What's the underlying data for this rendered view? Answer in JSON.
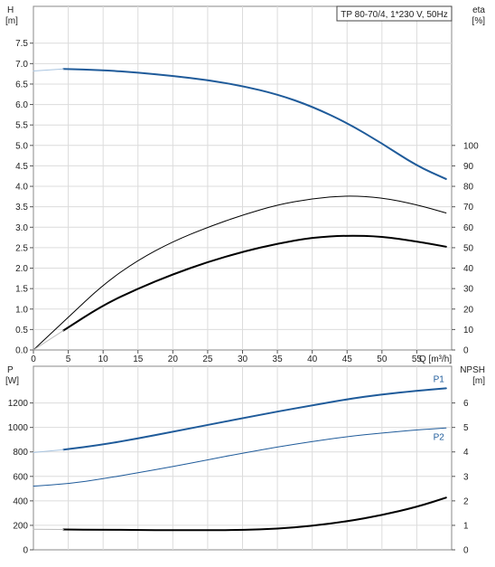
{
  "chart_data": [
    {
      "type": "line",
      "title": "TP 80-70/4, 1*230 V, 50Hz",
      "xlabel": "Q [m³/h]",
      "ylabel": "H",
      "ylabel_unit": "[m]",
      "y2label": "eta",
      "y2label_unit": "[%]",
      "xlim": [
        0,
        60
      ],
      "ylim": [
        0,
        8.4
      ],
      "y2lim": [
        0,
        168
      ],
      "x_ticks": [
        "0",
        "5",
        "10",
        "15",
        "20",
        "25",
        "30",
        "35",
        "40",
        "45",
        "50",
        "55"
      ],
      "x_tick_values": [
        0,
        5,
        10,
        15,
        20,
        25,
        30,
        35,
        40,
        45,
        50,
        55
      ],
      "x_end_label": "Q [m³/h]",
      "y_ticks": [
        "0.0",
        "0.5",
        "1.0",
        "1.5",
        "2.0",
        "2.5",
        "3.0",
        "3.5",
        "4.0",
        "4.5",
        "5.0",
        "5.5",
        "6.0",
        "6.5",
        "7.0",
        "7.5"
      ],
      "y_tick_values": [
        0,
        0.5,
        1,
        1.5,
        2,
        2.5,
        3,
        3.5,
        4,
        4.5,
        5,
        5.5,
        6,
        6.5,
        7,
        7.5
      ],
      "y2_ticks": [
        "0",
        "10",
        "20",
        "30",
        "40",
        "50",
        "60",
        "70",
        "80",
        "90",
        "100"
      ],
      "y2_tick_values": [
        0,
        10,
        20,
        30,
        40,
        50,
        60,
        70,
        80,
        90,
        100
      ],
      "grid": true,
      "series": [
        {
          "axis": "left",
          "color": "#1f5b9a",
          "width": 2,
          "style": "solid",
          "x": [
            4.3,
            10,
            15,
            20,
            25,
            30,
            35,
            40,
            45,
            50,
            55,
            59.2
          ],
          "y": [
            6.87,
            6.84,
            6.78,
            6.7,
            6.6,
            6.45,
            6.25,
            5.95,
            5.55,
            5.05,
            4.5,
            4.18
          ]
        },
        {
          "axis": "left",
          "color": "#a8c4e0",
          "width": 1,
          "style": "solid",
          "x": [
            0,
            4.3
          ],
          "y": [
            6.82,
            6.87
          ]
        },
        {
          "axis": "right",
          "color": "#000000",
          "width": 1,
          "style": "solid",
          "x": [
            0,
            5,
            10,
            15,
            20,
            25,
            30,
            35,
            40,
            45,
            50,
            55,
            59.2
          ],
          "y": [
            0,
            16,
            32,
            44,
            53,
            60,
            66,
            71,
            74,
            75.5,
            74.5,
            71,
            67
          ]
        },
        {
          "axis": "right",
          "color": "#000000",
          "width": 2,
          "style": "solid",
          "x": [
            4.3,
            10,
            15,
            20,
            25,
            30,
            35,
            40,
            45,
            50,
            55,
            59.2
          ],
          "y": [
            9.5,
            22,
            30,
            37,
            43,
            48,
            52,
            55,
            56,
            55.5,
            53,
            50.5
          ]
        },
        {
          "axis": "right",
          "color": "#bbbbbb",
          "width": 1,
          "style": "solid",
          "x": [
            0,
            4.3
          ],
          "y": [
            0,
            9.5
          ]
        }
      ]
    },
    {
      "type": "line",
      "ylabel": "P",
      "ylabel_unit": "[W]",
      "y2label": "NPSH",
      "y2label_unit": "[m]",
      "xlim": [
        0,
        60
      ],
      "ylim": [
        0,
        1500
      ],
      "y2lim": [
        0,
        7.5
      ],
      "y_ticks": [
        "0",
        "200",
        "400",
        "600",
        "800",
        "1000",
        "1200"
      ],
      "y_tick_values": [
        0,
        200,
        400,
        600,
        800,
        1000,
        1200
      ],
      "y2_ticks": [
        "0",
        "1",
        "2",
        "3",
        "4",
        "5",
        "6"
      ],
      "y2_tick_values": [
        0,
        1,
        2,
        3,
        4,
        5,
        6
      ],
      "grid": true,
      "series": [
        {
          "name": "P1",
          "axis": "left",
          "color": "#1f5b9a",
          "width": 2,
          "style": "solid",
          "x": [
            4.3,
            10,
            15,
            20,
            25,
            30,
            35,
            40,
            45,
            50,
            55,
            59.2
          ],
          "y": [
            818,
            860,
            910,
            965,
            1020,
            1075,
            1130,
            1180,
            1230,
            1270,
            1300,
            1320
          ]
        },
        {
          "axis": "left",
          "color": "#a8c4e0",
          "width": 1,
          "style": "solid",
          "x": [
            0,
            4.3
          ],
          "y": [
            795,
            818
          ]
        },
        {
          "name": "P2",
          "axis": "left",
          "color": "#1f5b9a",
          "width": 1,
          "style": "solid",
          "x": [
            0,
            5,
            10,
            15,
            20,
            25,
            30,
            35,
            40,
            45,
            50,
            55,
            59.2
          ],
          "y": [
            520,
            540,
            580,
            630,
            680,
            735,
            790,
            840,
            885,
            925,
            955,
            980,
            995
          ]
        },
        {
          "axis": "right",
          "color": "#000000",
          "width": 2,
          "style": "solid",
          "x": [
            4.3,
            10,
            15,
            20,
            25,
            30,
            35,
            40,
            45,
            50,
            55,
            59.2
          ],
          "y": [
            0.83,
            0.82,
            0.81,
            0.8,
            0.8,
            0.81,
            0.86,
            0.98,
            1.16,
            1.42,
            1.75,
            2.13
          ]
        },
        {
          "axis": "right",
          "color": "#bbbbbb",
          "width": 1,
          "style": "solid",
          "x": [
            0,
            4.3
          ],
          "y": [
            0.84,
            0.83
          ]
        }
      ],
      "series_labels": [
        "P1",
        "P2"
      ]
    }
  ]
}
